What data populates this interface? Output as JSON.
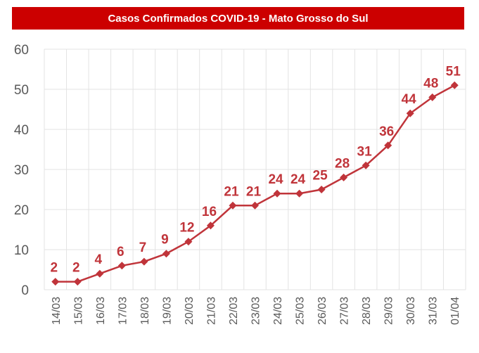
{
  "chart_data": {
    "type": "line",
    "title": "Casos Confirmados COVID-19 -  Mato Grosso do Sul",
    "xlabel": "",
    "ylabel": "",
    "categories": [
      "14/03",
      "15/03",
      "16/03",
      "17/03",
      "18/03",
      "19/03",
      "20/03",
      "21/03",
      "22/03",
      "23/03",
      "24/03",
      "25/03",
      "26/03",
      "27/03",
      "28/03",
      "29/03",
      "30/03",
      "31/03",
      "01/04"
    ],
    "series": [
      {
        "name": "Casos Confirmados",
        "values": [
          2,
          2,
          4,
          6,
          7,
          9,
          12,
          16,
          21,
          21,
          24,
          24,
          25,
          28,
          31,
          36,
          44,
          48,
          51
        ]
      }
    ],
    "ylim": [
      0,
      60
    ],
    "yticks": [
      0,
      10,
      20,
      30,
      40,
      50,
      60
    ],
    "grid": true,
    "data_labels": true,
    "legend": "none",
    "marker": "diamond"
  },
  "colors": {
    "banner": "#cc0000",
    "banner_text": "#ffffff",
    "series": "#c0343a",
    "grid": "#e3e3e3",
    "tick_text": "#595959"
  }
}
